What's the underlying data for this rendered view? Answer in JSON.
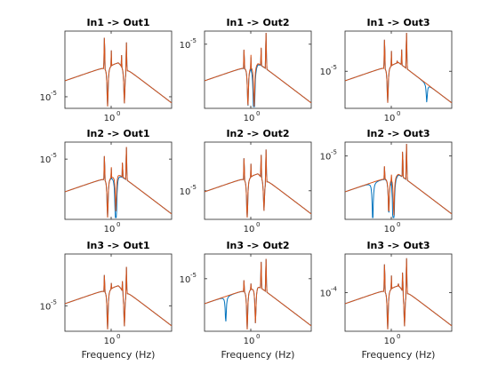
{
  "figure": {
    "background": "#ffffff",
    "axis_color": "#262626",
    "series_colors": [
      "#0072bd",
      "#d95319"
    ]
  },
  "chart_data": [
    {
      "type": "line",
      "title": "In1 -> Out1",
      "xlabel": "",
      "xscale": "log",
      "yscale": "log",
      "x_tick_labels": [
        "10",
        "0"
      ],
      "y_tick_labels": [
        "10",
        "-5"
      ],
      "peaks": [
        {
          "f": 0.55,
          "h": 0.95,
          "w": 0.03
        },
        {
          "f": 0.74,
          "h": 0.75,
          "w": 0.03
        },
        {
          "f": 0.95,
          "h": 0.55,
          "w": 0.02
        },
        {
          "f": 1.15,
          "h": 0.7,
          "w": 0.03
        },
        {
          "f": 1.42,
          "h": 0.9,
          "w": 0.03
        }
      ],
      "dips": [
        {
          "f": 0.63,
          "d": 0.55
        },
        {
          "f": 1.3,
          "d": 0.5
        }
      ],
      "blue_dips": []
    },
    {
      "type": "line",
      "title": "In1 -> Out2",
      "xlabel": "",
      "xscale": "log",
      "yscale": "log",
      "x_tick_labels": [
        "10",
        "0"
      ],
      "y_tick_labels": [
        "10",
        "-5"
      ],
      "peaks": [
        {
          "f": 0.55,
          "h": 0.78,
          "w": 0.03
        },
        {
          "f": 0.74,
          "h": 0.72,
          "w": 0.03
        },
        {
          "f": 1.0,
          "h": 0.5,
          "w": 0.02
        },
        {
          "f": 1.15,
          "h": 0.78,
          "w": 0.03
        },
        {
          "f": 1.42,
          "h": 1.0,
          "w": 0.03
        }
      ],
      "dips": [
        {
          "f": 0.65,
          "d": 0.55
        },
        {
          "f": 0.85,
          "d": 0.62
        }
      ],
      "blue_dips": [
        {
          "f": 0.84,
          "d": 0.7
        }
      ]
    },
    {
      "type": "line",
      "title": "In1 -> Out3",
      "xlabel": "",
      "xscale": "log",
      "yscale": "log",
      "x_tick_labels": [
        "10",
        "0"
      ],
      "y_tick_labels": [
        "10",
        "-5"
      ],
      "peaks": [
        {
          "f": 0.55,
          "h": 0.92,
          "w": 0.03
        },
        {
          "f": 0.74,
          "h": 0.74,
          "w": 0.03
        },
        {
          "f": 0.95,
          "h": 0.6,
          "w": 0.02
        },
        {
          "f": 1.15,
          "h": 0.75,
          "w": 0.03
        },
        {
          "f": 1.42,
          "h": 1.0,
          "w": 0.03
        }
      ],
      "dips": [
        {
          "f": 0.63,
          "d": 0.5
        }
      ],
      "blue_dips": [
        {
          "f": 3.4,
          "d": 0.25
        }
      ]
    },
    {
      "type": "line",
      "title": "In2 -> Out1",
      "xlabel": "",
      "xscale": "log",
      "yscale": "log",
      "x_tick_labels": [
        "10",
        "0"
      ],
      "y_tick_labels": [
        "10",
        "-5"
      ],
      "peaks": [
        {
          "f": 0.55,
          "h": 0.85,
          "w": 0.03
        },
        {
          "f": 0.74,
          "h": 0.68,
          "w": 0.03
        },
        {
          "f": 1.0,
          "h": 0.5,
          "w": 0.02
        },
        {
          "f": 1.2,
          "h": 0.75,
          "w": 0.03
        },
        {
          "f": 1.42,
          "h": 0.95,
          "w": 0.03
        }
      ],
      "dips": [
        {
          "f": 0.63,
          "d": 0.55
        },
        {
          "f": 0.9,
          "d": 0.5
        }
      ],
      "blue_dips": [
        {
          "f": 0.9,
          "d": 0.75
        }
      ]
    },
    {
      "type": "line",
      "title": "In2 -> Out2",
      "xlabel": "",
      "xscale": "log",
      "yscale": "log",
      "x_tick_labels": [
        "10",
        "0"
      ],
      "y_tick_labels": [
        "10",
        "-5"
      ],
      "peaks": [
        {
          "f": 0.55,
          "h": 0.82,
          "w": 0.03
        },
        {
          "f": 0.74,
          "h": 0.72,
          "w": 0.03
        },
        {
          "f": 1.15,
          "h": 0.85,
          "w": 0.03
        },
        {
          "f": 1.42,
          "h": 0.95,
          "w": 0.03
        }
      ],
      "dips": [
        {
          "f": 0.63,
          "d": 0.6
        },
        {
          "f": 1.3,
          "d": 0.45
        }
      ],
      "blue_dips": []
    },
    {
      "type": "line",
      "title": "In2 -> Out3",
      "xlabel": "",
      "xscale": "log",
      "yscale": "log",
      "x_tick_labels": [
        "10",
        "0"
      ],
      "y_tick_labels": [
        "10",
        "-5"
      ],
      "peaks": [
        {
          "f": 0.55,
          "h": 0.7,
          "w": 0.03
        },
        {
          "f": 0.74,
          "h": 0.62,
          "w": 0.03
        },
        {
          "f": 1.0,
          "h": 0.55,
          "w": 0.02
        },
        {
          "f": 1.2,
          "h": 0.9,
          "w": 0.03
        },
        {
          "f": 1.42,
          "h": 1.0,
          "w": 0.03
        }
      ],
      "dips": [
        {
          "f": 0.66,
          "d": 0.5
        },
        {
          "f": 0.82,
          "d": 0.55
        }
      ],
      "blue_dips": [
        {
          "f": 0.33,
          "d": 0.55
        },
        {
          "f": 0.8,
          "d": 0.7
        }
      ]
    },
    {
      "type": "line",
      "title": "In3 -> Out1",
      "xlabel": "Frequency (Hz)",
      "xscale": "log",
      "yscale": "log",
      "x_tick_labels": [
        "10",
        "0"
      ],
      "y_tick_labels": [
        "10",
        "-5"
      ],
      "peaks": [
        {
          "f": 0.55,
          "h": 0.75,
          "w": 0.03
        },
        {
          "f": 0.74,
          "h": 0.62,
          "w": 0.03
        },
        {
          "f": 1.0,
          "h": 0.5,
          "w": 0.02
        },
        {
          "f": 1.2,
          "h": 0.7,
          "w": 0.03
        },
        {
          "f": 1.42,
          "h": 0.88,
          "w": 0.03
        }
      ],
      "dips": [
        {
          "f": 0.63,
          "d": 0.55
        },
        {
          "f": 1.3,
          "d": 0.5
        }
      ],
      "blue_dips": []
    },
    {
      "type": "line",
      "title": "In3 -> Out2",
      "xlabel": "Frequency (Hz)",
      "xscale": "log",
      "yscale": "log",
      "x_tick_labels": [
        "10",
        "0"
      ],
      "y_tick_labels": [
        "10",
        "-5"
      ],
      "peaks": [
        {
          "f": 0.55,
          "h": 0.68,
          "w": 0.03
        },
        {
          "f": 0.74,
          "h": 0.62,
          "w": 0.03
        },
        {
          "f": 1.15,
          "h": 0.9,
          "w": 0.03
        },
        {
          "f": 1.42,
          "h": 0.95,
          "w": 0.03
        }
      ],
      "dips": [
        {
          "f": 0.63,
          "d": 0.55
        },
        {
          "f": 0.9,
          "d": 0.5
        }
      ],
      "blue_dips": [
        {
          "f": 0.25,
          "d": 0.35
        }
      ]
    },
    {
      "type": "line",
      "title": "In3 -> Out3",
      "xlabel": "Frequency (Hz)",
      "xscale": "log",
      "yscale": "log",
      "x_tick_labels": [
        "10",
        "0"
      ],
      "y_tick_labels": [
        "10",
        "-4"
      ],
      "peaks": [
        {
          "f": 0.55,
          "h": 0.9,
          "w": 0.03
        },
        {
          "f": 0.74,
          "h": 0.72,
          "w": 0.03
        },
        {
          "f": 1.0,
          "h": 0.6,
          "w": 0.02
        },
        {
          "f": 1.2,
          "h": 0.82,
          "w": 0.03
        },
        {
          "f": 1.42,
          "h": 1.0,
          "w": 0.03
        }
      ],
      "dips": [
        {
          "f": 0.63,
          "d": 0.55
        },
        {
          "f": 1.3,
          "d": 0.5
        }
      ],
      "blue_dips": []
    }
  ]
}
